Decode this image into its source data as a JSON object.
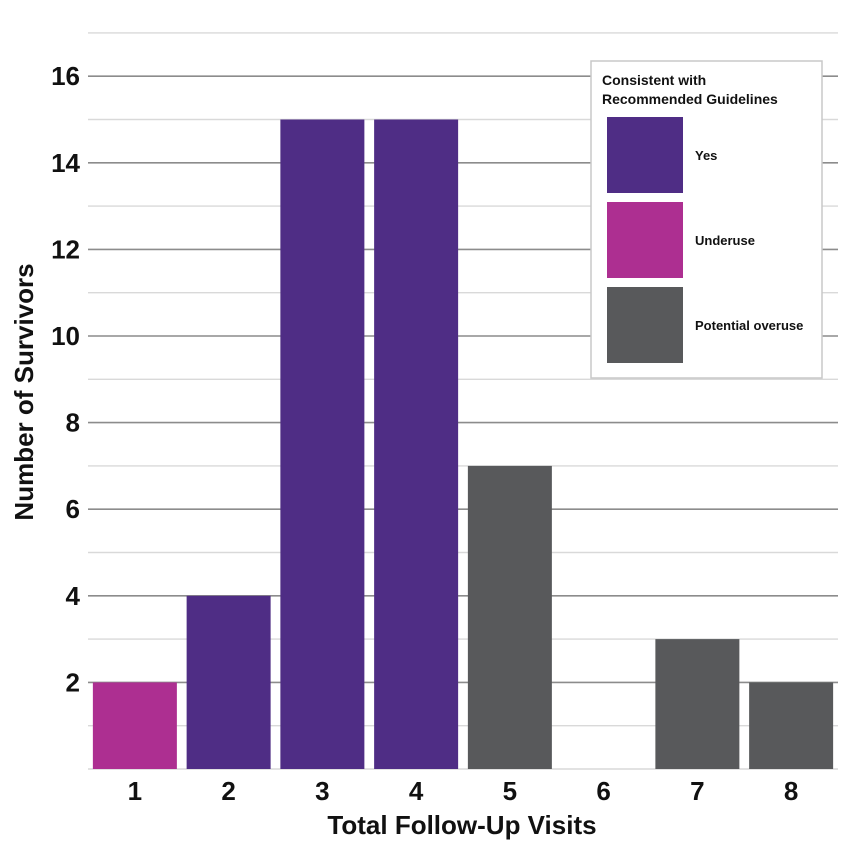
{
  "chart_data": {
    "type": "bar",
    "xlabel": "Total Follow-Up Visits",
    "ylabel": "Number of Survivors",
    "categories": [
      "1",
      "2",
      "3",
      "4",
      "5",
      "6",
      "7",
      "8"
    ],
    "values": [
      2,
      4,
      15,
      15,
      7,
      0,
      3,
      2
    ],
    "bar_groups": [
      "Underuse",
      "Yes",
      "Yes",
      "Yes",
      "Potential overuse",
      "",
      "Potential overuse",
      "Potential overuse"
    ],
    "ylim": [
      0,
      17
    ],
    "yticks": [
      2,
      4,
      6,
      8,
      10,
      12,
      14,
      16
    ],
    "grid": true,
    "legend": {
      "title_lines": [
        "Consistent with",
        "Recommended Guidelines"
      ],
      "placement": "top-right",
      "items": [
        {
          "label": "Yes",
          "color": "#4f2d85"
        },
        {
          "label": "Underuse",
          "color": "#ad2f91"
        },
        {
          "label": "Potential overuse",
          "color": "#58595b"
        }
      ]
    }
  }
}
